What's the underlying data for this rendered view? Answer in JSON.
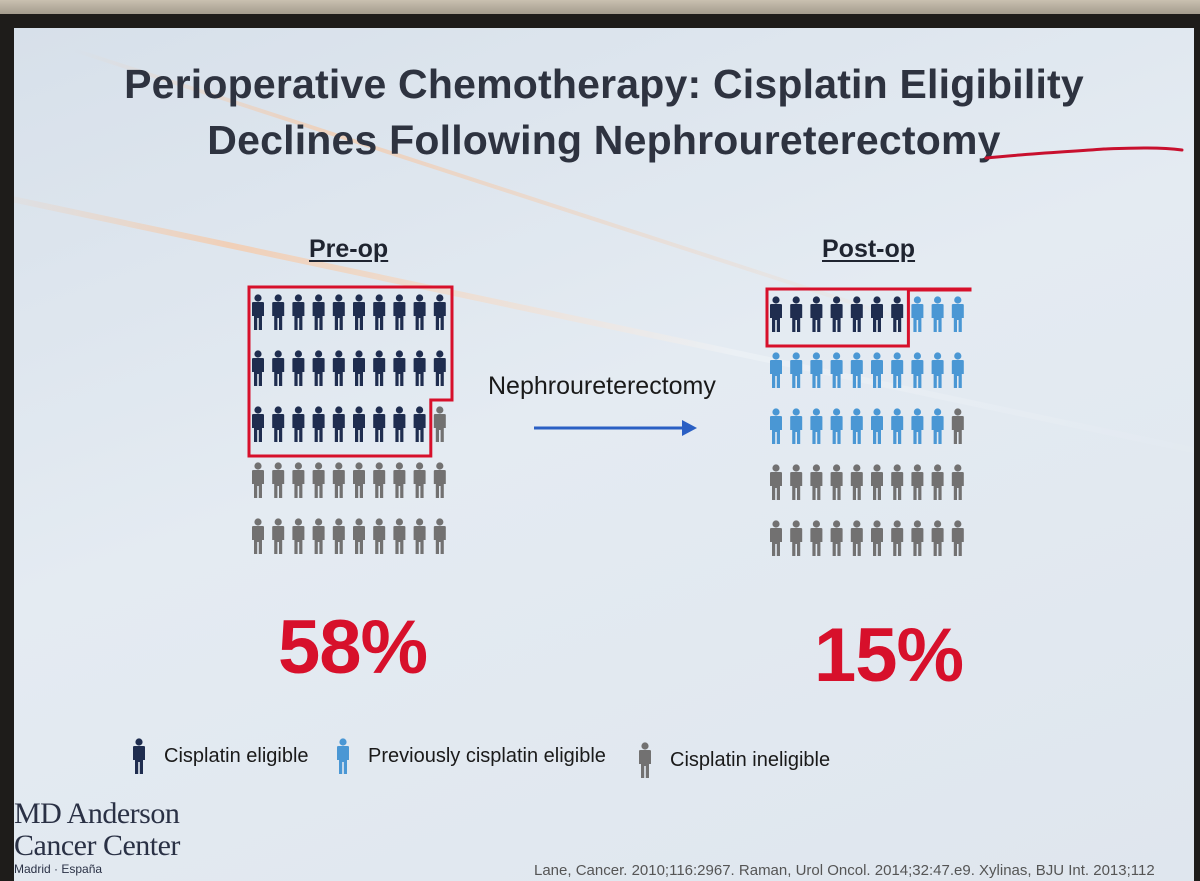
{
  "slide": {
    "title_line1": "Perioperative Chemotherapy: Cisplatin Eligibility",
    "title_line2": "Declines Following Nephroureterectomy",
    "arrow_label": "Nephroureterectomy",
    "logo_line1": "MD Anderson",
    "logo_line2": "Cancer Center",
    "logo_line3": "Madrid · España",
    "citation": "Lane, Cancer. 2010;116:2967. Raman, Urol Oncol. 2014;32:47.e9. Xylinas, BJU Int. 2013;112"
  },
  "legend": [
    {
      "label": "Cisplatin eligible",
      "color": "#1f2d4f",
      "icon": "person-icon"
    },
    {
      "label": "Previously cisplatin eligible",
      "color": "#4a97d4",
      "icon": "person-icon"
    },
    {
      "label": "Cisplatin ineligible",
      "color": "#727171",
      "icon": "person-icon"
    }
  ],
  "chart_data": [
    {
      "type": "pictogram",
      "title": "Pre-op",
      "value_label": "58%",
      "rows": 5,
      "cols": 10,
      "counts": {
        "Cisplatin eligible": 29,
        "Previously cisplatin eligible": 0,
        "Cisplatin ineligible": 21
      },
      "highlight": "Cisplatin eligible"
    },
    {
      "type": "pictogram",
      "title": "Post-op",
      "value_label": "15%",
      "rows": 5,
      "cols": 10,
      "counts": {
        "Cisplatin eligible": 7,
        "Previously cisplatin eligible": 22,
        "Cisplatin ineligible": 21
      },
      "highlight": "Cisplatin eligible"
    }
  ]
}
